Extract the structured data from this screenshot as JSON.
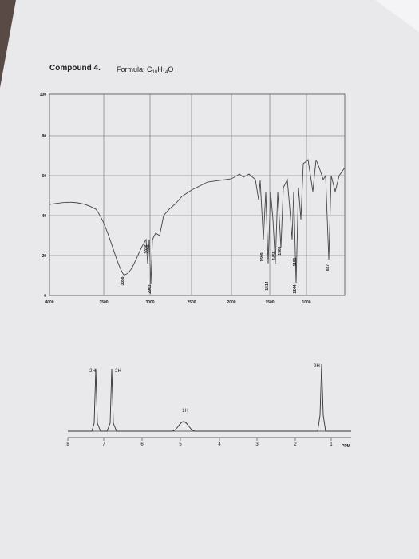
{
  "title": {
    "compound": "Compound 4.",
    "formula": "Formula: C",
    "c_count": "10",
    "h": "H",
    "h_count": "14",
    "o": "O"
  },
  "ir": {
    "yticks": [
      "100",
      "80",
      "60",
      "40",
      "20",
      "0"
    ],
    "xticks": [
      "4000",
      "3500",
      "3000",
      "2500",
      "2000",
      "1500",
      "1000"
    ],
    "peaks": [
      "3358",
      "2963",
      "3026",
      "1599",
      "1514",
      "1458",
      "1381",
      "1244",
      "1181",
      "827"
    ]
  },
  "nmr": {
    "integrals": [
      "2H",
      "2H",
      "1H",
      "9H"
    ],
    "xticks": [
      "8",
      "7",
      "6",
      "5",
      "4",
      "3",
      "2",
      "1"
    ],
    "unit": "PPM"
  }
}
